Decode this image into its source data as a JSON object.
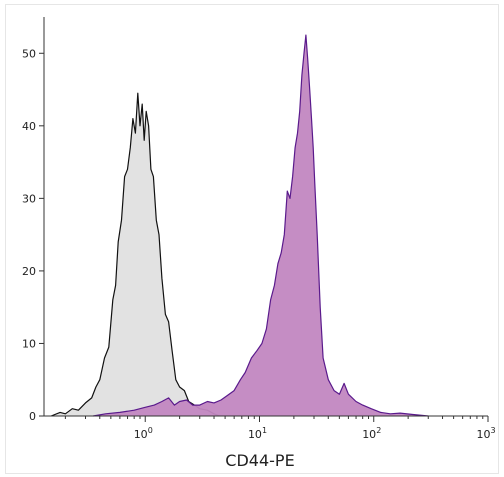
{
  "chart_data": {
    "type": "histogram",
    "title": "",
    "xlabel": "CD44-PE",
    "ylabel": "",
    "x_scale": "log",
    "xlim": [
      0.13,
      1000
    ],
    "ylim": [
      0,
      55
    ],
    "x_ticks": [
      {
        "value": 1,
        "base": "10",
        "exp": "0"
      },
      {
        "value": 10,
        "base": "10",
        "exp": "1"
      },
      {
        "value": 100,
        "base": "10",
        "exp": "2"
      },
      {
        "value": 1000,
        "base": "10",
        "exp": "3"
      }
    ],
    "y_ticks": [
      0,
      10,
      20,
      30,
      40,
      50
    ],
    "legend": "none",
    "grid": false,
    "series": [
      {
        "role": "isotype control",
        "fill": "#e2e2e2",
        "stroke": "#111111",
        "points": [
          [
            0.15,
            0
          ],
          [
            0.18,
            0.5
          ],
          [
            0.2,
            0.3
          ],
          [
            0.23,
            1
          ],
          [
            0.26,
            0.8
          ],
          [
            0.3,
            1.8
          ],
          [
            0.34,
            2.5
          ],
          [
            0.37,
            4
          ],
          [
            0.4,
            5
          ],
          [
            0.44,
            8
          ],
          [
            0.48,
            9.5
          ],
          [
            0.52,
            16
          ],
          [
            0.55,
            18
          ],
          [
            0.58,
            24
          ],
          [
            0.62,
            27
          ],
          [
            0.66,
            33
          ],
          [
            0.7,
            34
          ],
          [
            0.74,
            37
          ],
          [
            0.78,
            41
          ],
          [
            0.82,
            39
          ],
          [
            0.86,
            44.5
          ],
          [
            0.9,
            40
          ],
          [
            0.94,
            43
          ],
          [
            0.98,
            38
          ],
          [
            1.02,
            42
          ],
          [
            1.07,
            40
          ],
          [
            1.12,
            34
          ],
          [
            1.18,
            33
          ],
          [
            1.25,
            27
          ],
          [
            1.32,
            25
          ],
          [
            1.4,
            19
          ],
          [
            1.5,
            14
          ],
          [
            1.6,
            13
          ],
          [
            1.72,
            9
          ],
          [
            1.85,
            5
          ],
          [
            2.0,
            4
          ],
          [
            2.2,
            3.5
          ],
          [
            2.4,
            2
          ],
          [
            2.7,
            1.5
          ],
          [
            3.0,
            1
          ],
          [
            3.5,
            0.8
          ],
          [
            4.0,
            0.3
          ],
          [
            4.5,
            0
          ]
        ]
      },
      {
        "role": "CD44-PE stained",
        "fill": "#c287c1",
        "stroke": "#5a1a8c",
        "points": [
          [
            0.35,
            0
          ],
          [
            0.45,
            0.3
          ],
          [
            0.6,
            0.5
          ],
          [
            0.8,
            0.8
          ],
          [
            1.0,
            1.2
          ],
          [
            1.2,
            1.5
          ],
          [
            1.4,
            2
          ],
          [
            1.6,
            2.5
          ],
          [
            1.8,
            1.5
          ],
          [
            2.0,
            2
          ],
          [
            2.3,
            2.2
          ],
          [
            2.6,
            1.5
          ],
          [
            3.0,
            1.5
          ],
          [
            3.5,
            2
          ],
          [
            4.0,
            1.8
          ],
          [
            4.6,
            2.2
          ],
          [
            5.2,
            2.8
          ],
          [
            6.0,
            3.5
          ],
          [
            6.8,
            5
          ],
          [
            7.5,
            6
          ],
          [
            8.5,
            8
          ],
          [
            9.5,
            9
          ],
          [
            10.5,
            10
          ],
          [
            11.5,
            12
          ],
          [
            12.5,
            16
          ],
          [
            13.5,
            18
          ],
          [
            14.5,
            21
          ],
          [
            15.5,
            22.5
          ],
          [
            16.5,
            25
          ],
          [
            17.5,
            31
          ],
          [
            18.5,
            30
          ],
          [
            19.5,
            33
          ],
          [
            20.5,
            37
          ],
          [
            21.5,
            39
          ],
          [
            22.5,
            42
          ],
          [
            23.5,
            47
          ],
          [
            24.5,
            50
          ],
          [
            25.5,
            52.5
          ],
          [
            26.5,
            49
          ],
          [
            27.5,
            45
          ],
          [
            28.5,
            41
          ],
          [
            29.5,
            37
          ],
          [
            30.5,
            32
          ],
          [
            32,
            25
          ],
          [
            34,
            15
          ],
          [
            36,
            8
          ],
          [
            40,
            5
          ],
          [
            45,
            3.5
          ],
          [
            50,
            3
          ],
          [
            55,
            4.5
          ],
          [
            60,
            3
          ],
          [
            70,
            2
          ],
          [
            80,
            1.5
          ],
          [
            95,
            1
          ],
          [
            115,
            0.5
          ],
          [
            140,
            0.3
          ],
          [
            170,
            0.4
          ],
          [
            220,
            0.2
          ],
          [
            300,
            0
          ]
        ]
      }
    ]
  }
}
